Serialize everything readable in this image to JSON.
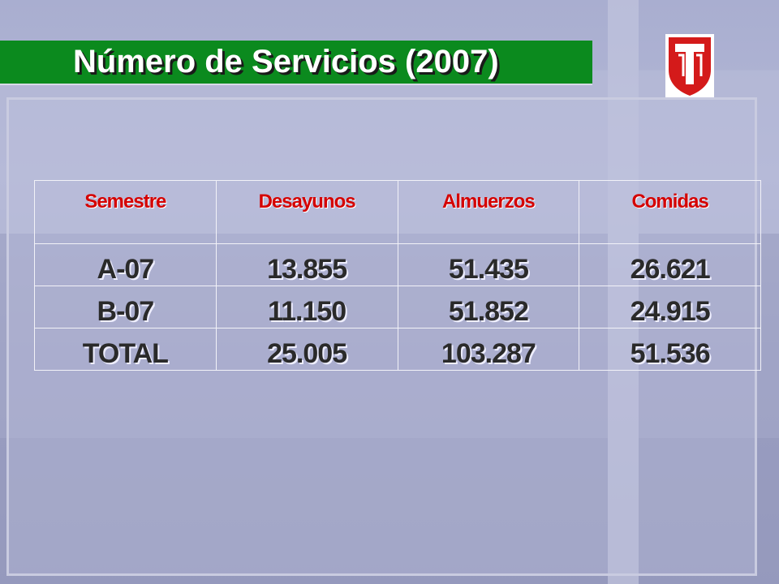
{
  "header": {
    "title": "Número de Servicios (2007)"
  },
  "table": {
    "columns": [
      "Semestre",
      "Desayunos",
      "Almuerzos",
      "Comidas"
    ],
    "rows": [
      [
        "A-07",
        "13.855",
        "51.435",
        "26.621"
      ],
      [
        "B-07",
        "11.150",
        "51.852",
        "24.915"
      ],
      [
        "TOTAL",
        "25.005",
        "103.287",
        "51.536"
      ]
    ]
  }
}
